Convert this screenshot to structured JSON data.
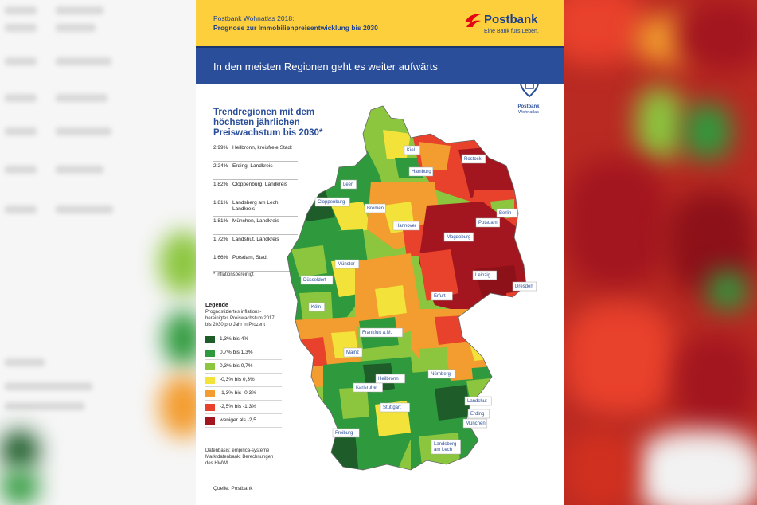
{
  "header": {
    "line1": "Postbank Wohnatlas 2018:",
    "line2": "Prognose zur Immobilienpreisentwicklung bis 2030",
    "brand_name": "Postbank",
    "brand_slogan": "Eine Bank fürs Leben."
  },
  "banner": {
    "title": "In den meisten Regionen geht es weiter aufwärts"
  },
  "badge": {
    "line1": "Postbank",
    "line2": "Wohnatlas"
  },
  "trend": {
    "title": "Trendregionen mit dem höchsten jährlichen Preiswachstum bis 2030*",
    "items": [
      {
        "pct": "2,99%",
        "name": "Heilbronn, kreisfreie Stadt"
      },
      {
        "pct": "2,24%",
        "name": "Erding, Landkreis"
      },
      {
        "pct": "1,82%",
        "name": "Cloppenburg, Landkreis"
      },
      {
        "pct": "1,81%",
        "name": "Landsberg am Lech, Landkreis"
      },
      {
        "pct": "1,81%",
        "name": "München, Landkreis"
      },
      {
        "pct": "1,72%",
        "name": "Landshut, Landkreis"
      },
      {
        "pct": "1,66%",
        "name": "Potsdam, Stadt"
      }
    ],
    "footnote": "* inflationsbereinigt"
  },
  "legend": {
    "title": "Legende",
    "description": "Prognostiziertes inflations-bereinigtes Preiswachstum 2017 bis 2030 pro Jahr in Prozent",
    "items": [
      {
        "label": "1,3% bis 4%",
        "color": "#1e5c2a"
      },
      {
        "label": "0,7% bis 1,3%",
        "color": "#2f9a3d"
      },
      {
        "label": "0,3% bis 0,7%",
        "color": "#8cc63f"
      },
      {
        "label": "-0,3% bis 0,3%",
        "color": "#f2e23a"
      },
      {
        "label": "-1,3% bis -0,3%",
        "color": "#f39c2f"
      },
      {
        "label": "-2,5% bis -1,3%",
        "color": "#e8412c"
      },
      {
        "label": "weniger als -2,5",
        "color": "#a3161f"
      }
    ]
  },
  "database": "Datenbasis: empirica-systeme Marktdatenbank; Berechnungen des HWWI",
  "source": "Quelle: Postbank",
  "map": {
    "cities": [
      {
        "name": "Kiel"
      },
      {
        "name": "Rostock"
      },
      {
        "name": "Hamburg"
      },
      {
        "name": "Leer"
      },
      {
        "name": "Cloppenburg"
      },
      {
        "name": "Bremen"
      },
      {
        "name": "Berlin"
      },
      {
        "name": "Potsdam"
      },
      {
        "name": "Hannover"
      },
      {
        "name": "Magdeburg"
      },
      {
        "name": "Münster"
      },
      {
        "name": "Düsseldorf"
      },
      {
        "name": "Leipzig"
      },
      {
        "name": "Dresden"
      },
      {
        "name": "Köln"
      },
      {
        "name": "Erfurt"
      },
      {
        "name": "Frankfurt a.M."
      },
      {
        "name": "Mainz"
      },
      {
        "name": "Heilbronn"
      },
      {
        "name": "Nürnberg"
      },
      {
        "name": "Karlsruhe"
      },
      {
        "name": "Stuttgart"
      },
      {
        "name": "Landshut"
      },
      {
        "name": "Erding"
      },
      {
        "name": "München"
      },
      {
        "name": "Freiburg"
      },
      {
        "name": "Landsberg am Lech"
      }
    ]
  }
}
